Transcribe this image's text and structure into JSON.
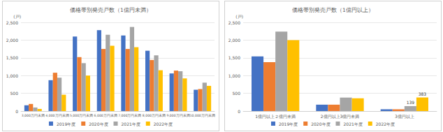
{
  "chart_data": [
    {
      "type": "bar",
      "title": "価格帯別発売戸数（1億円未満）",
      "ylabel": "(戸)",
      "categories": [
        "3,000万円未満",
        "4,000万円未満",
        "5,000万円未満",
        "6,000万円未満",
        "7,000万円未満",
        "8,000万円未満",
        "9,000万円未満",
        "10,000万円未満"
      ],
      "series": [
        {
          "name": "2019年度",
          "color": "#4472c4",
          "values": [
            160,
            870,
            2100,
            2280,
            2130,
            1700,
            1060,
            600
          ]
        },
        {
          "name": "2020年度",
          "color": "#ed7d31",
          "values": [
            200,
            1080,
            1520,
            1750,
            1750,
            1440,
            1140,
            620
          ]
        },
        {
          "name": "2021年度",
          "color": "#a5a5a5",
          "values": [
            100,
            940,
            1350,
            2150,
            2370,
            1570,
            1120,
            800
          ]
        },
        {
          "name": "2022年度",
          "color": "#ffc000",
          "values": [
            60,
            460,
            1000,
            1840,
            1800,
            1150,
            920,
            710
          ]
        }
      ],
      "ylim": [
        0,
        2500
      ],
      "yticks": [
        0,
        500,
        {
          "value": 1000,
          "label": "1,000"
        },
        {
          "value": 1500,
          "label": "1,500"
        },
        {
          "value": 2000,
          "label": "2,000"
        },
        {
          "value": 2500,
          "label": "2,500"
        }
      ],
      "grid": true,
      "legend": "bottom"
    },
    {
      "type": "bar",
      "title": "価格帯別発売戸数（1億円以上）",
      "ylabel": "(戸)",
      "categories": [
        "1億円以上２億円未満",
        "2億円以上3億円未満",
        "3億円以上"
      ],
      "series": [
        {
          "name": "2019年度",
          "color": "#4472c4",
          "values": [
            1540,
            180,
            50
          ]
        },
        {
          "name": "2020年度",
          "color": "#ed7d31",
          "values": [
            1380,
            180,
            50
          ]
        },
        {
          "name": "2021年度",
          "color": "#a5a5a5",
          "values": [
            2240,
            380,
            139
          ],
          "value_labels": [
            null,
            null,
            "139"
          ]
        },
        {
          "name": "2022年度",
          "color": "#ffc000",
          "values": [
            2000,
            360,
            383
          ],
          "value_labels": [
            null,
            null,
            "383"
          ]
        }
      ],
      "ylim": [
        0,
        2500
      ],
      "yticks": [
        0,
        500,
        {
          "value": 1000,
          "label": "1,000"
        },
        {
          "value": 1500,
          "label": "1,500"
        },
        {
          "value": 2000,
          "label": "2,000"
        },
        {
          "value": 2500,
          "label": "2,500"
        }
      ],
      "grid": true,
      "legend": "bottom"
    }
  ]
}
